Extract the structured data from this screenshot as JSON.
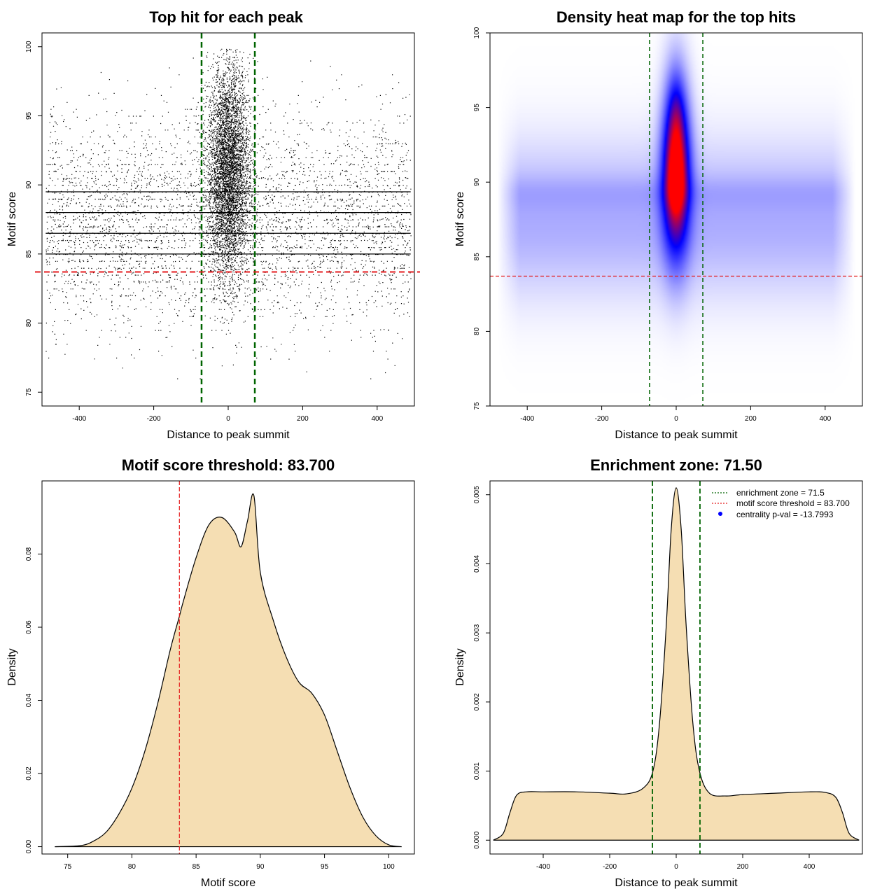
{
  "chart_data": [
    {
      "type": "scatter",
      "title": "Top hit for each peak",
      "xlabel": "Distance to peak summit",
      "ylabel": "Motif score",
      "xlim": [
        -500,
        500
      ],
      "ylim": [
        74,
        101
      ],
      "xticks": [
        -400,
        -200,
        0,
        200,
        400
      ],
      "yticks": [
        75,
        80,
        85,
        90,
        95,
        100
      ],
      "background_band": {
        "x_range": [
          -490,
          490
        ],
        "score_mean": 87.5,
        "score_sd": 3.8
      },
      "central_cluster": {
        "x_center": 0,
        "x_sd": 28,
        "score_mean": 91.0,
        "score_sd": 3.9
      },
      "dense_score_rows": [
        89.5,
        88.0,
        86.5,
        85.0
      ],
      "enrichment_zone": [
        -71.5,
        71.5
      ],
      "score_threshold": 83.7,
      "colors": {
        "points": "#000000",
        "zone_lines": "#006400",
        "threshold_line": "#e41a1c"
      }
    },
    {
      "type": "heatmap",
      "title": "Density heat map for the top hits",
      "xlabel": "Distance to peak summit",
      "ylabel": "Motif score",
      "xlim": [
        -500,
        500
      ],
      "ylim": [
        75,
        100
      ],
      "xticks": [
        -400,
        -200,
        0,
        200,
        400
      ],
      "yticks": [
        75,
        80,
        85,
        90,
        95,
        100
      ],
      "central_peak": {
        "x_center": 0,
        "score_center": 90.0
      },
      "enrichment_zone": [
        -71.5,
        71.5
      ],
      "score_threshold": 83.7,
      "colors": {
        "low": "#ffffff",
        "mid": "#0000ff",
        "high": "#ff0000",
        "zone_lines": "#006400",
        "threshold_line": "#e41a1c"
      }
    },
    {
      "type": "area",
      "title": "Motif score threshold: 83.700",
      "xlabel": "Motif score",
      "ylabel": "Density",
      "xlim": [
        73,
        102
      ],
      "ylim": [
        -0.002,
        0.1
      ],
      "xticks": [
        75,
        80,
        85,
        90,
        95,
        100
      ],
      "yticks": [
        0.0,
        0.02,
        0.04,
        0.06,
        0.08
      ],
      "ytick_labels": [
        "0.00",
        "0.02",
        "0.04",
        "0.06",
        "0.08"
      ],
      "x": [
        74,
        76,
        77,
        78,
        79,
        80,
        81,
        82,
        83,
        83.7,
        84,
        85,
        86,
        87,
        88,
        88.5,
        89,
        89.5,
        90,
        91,
        92,
        93,
        94,
        95,
        96,
        97,
        98,
        99,
        100,
        101
      ],
      "y": [
        0.0,
        0.0003,
        0.0015,
        0.004,
        0.009,
        0.016,
        0.026,
        0.039,
        0.054,
        0.063,
        0.067,
        0.079,
        0.088,
        0.09,
        0.086,
        0.082,
        0.089,
        0.096,
        0.075,
        0.062,
        0.052,
        0.045,
        0.042,
        0.036,
        0.026,
        0.016,
        0.008,
        0.003,
        0.0005,
        0.0
      ],
      "threshold_line": 83.7,
      "colors": {
        "fill": "#f5deb3",
        "line": "#000000",
        "threshold_line": "#e41a1c"
      }
    },
    {
      "type": "area",
      "title": "Enrichment zone: 71.50",
      "xlabel": "Distance to peak summit",
      "ylabel": "Density",
      "xlim": [
        -560,
        560
      ],
      "ylim": [
        -0.0002,
        0.0052
      ],
      "xticks": [
        -400,
        -200,
        0,
        200,
        400
      ],
      "yticks": [
        0.0,
        0.001,
        0.002,
        0.003,
        0.004,
        0.005
      ],
      "ytick_labels": [
        "0.000",
        "0.001",
        "0.002",
        "0.003",
        "0.004",
        "0.005"
      ],
      "x": [
        -550,
        -520,
        -500,
        -480,
        -450,
        -400,
        -300,
        -200,
        -150,
        -100,
        -70,
        -50,
        -30,
        -15,
        0,
        15,
        30,
        50,
        70,
        100,
        150,
        200,
        300,
        400,
        450,
        480,
        500,
        520,
        550
      ],
      "y": [
        0.0,
        0.0001,
        0.0004,
        0.00065,
        0.0007,
        0.0007,
        0.0007,
        0.00068,
        0.00067,
        0.00075,
        0.001,
        0.0017,
        0.0031,
        0.0045,
        0.0051,
        0.0045,
        0.0031,
        0.0017,
        0.001,
        0.00068,
        0.00064,
        0.00066,
        0.00068,
        0.0007,
        0.00069,
        0.00062,
        0.0004,
        0.0001,
        0.0
      ],
      "enrichment_zone": [
        -71.5,
        71.5
      ],
      "legend": {
        "entries": [
          {
            "label": "enrichment zone = 71.5",
            "style": "dotted-line",
            "color": "#006400"
          },
          {
            "label": "motif score threshold = 83.700",
            "style": "dotted-line",
            "color": "#e41a1c"
          },
          {
            "label": "centrality p-val = -13.7993",
            "style": "point",
            "color": "#0000ff"
          }
        ],
        "placement": "top-right"
      },
      "colors": {
        "fill": "#f5deb3",
        "line": "#000000",
        "zone_lines": "#006400"
      }
    }
  ]
}
